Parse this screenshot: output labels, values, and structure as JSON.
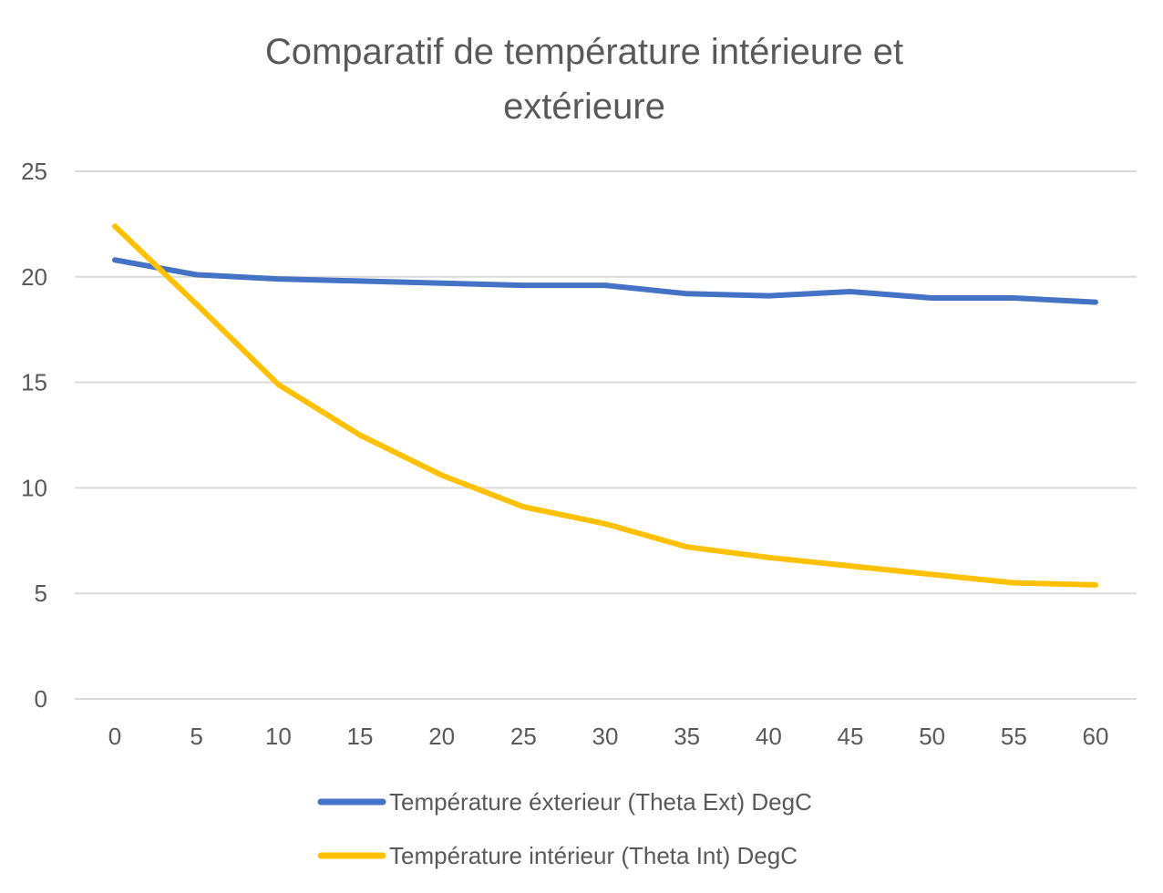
{
  "chart_data": {
    "type": "line",
    "title_lines": [
      "Comparatif de température intérieure et",
      "extérieure"
    ],
    "xlabel": "",
    "ylabel": "",
    "x": [
      0,
      5,
      10,
      15,
      20,
      25,
      30,
      35,
      40,
      45,
      50,
      55,
      60
    ],
    "xticks": [
      "0",
      "5",
      "10",
      "15",
      "20",
      "25",
      "30",
      "35",
      "40",
      "45",
      "50",
      "55",
      "60"
    ],
    "yticks": [
      "0",
      "5",
      "10",
      "15",
      "20",
      "25"
    ],
    "ylim": [
      0,
      25
    ],
    "grid": true,
    "legend_position": "bottom",
    "series": [
      {
        "name": "Température éxterieur (Theta Ext) DegC",
        "color": "#4472C4",
        "values": [
          20.8,
          20.1,
          19.9,
          19.8,
          19.7,
          19.6,
          19.6,
          19.2,
          19.1,
          19.3,
          19.0,
          19.0,
          18.8
        ]
      },
      {
        "name": "Température intérieur (Theta Int) DegC",
        "color": "#FFC000",
        "values": [
          22.4,
          18.7,
          14.9,
          12.5,
          10.6,
          9.1,
          8.3,
          7.2,
          6.7,
          6.3,
          5.9,
          5.5,
          5.4
        ]
      }
    ]
  }
}
